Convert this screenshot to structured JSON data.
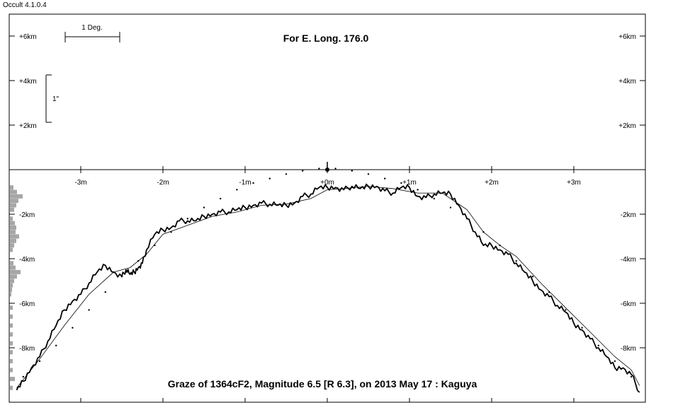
{
  "app": {
    "version": "Occult 4.1.0.4"
  },
  "chart_data": {
    "type": "line",
    "title": "For E. Long. 176.0",
    "subtitle": "Graze of  1364cF2,  Magnitude 6.5 [R 6.3],  on 2013 May 17  :  Kaguya",
    "scale_bars": {
      "degree_label": "1 Deg.",
      "arcsec_label": "1\""
    },
    "x_axis": {
      "unit": "min",
      "range": [
        -3.8,
        3.85
      ],
      "ticks": [
        -3,
        -2,
        -1,
        0,
        1,
        2,
        3
      ],
      "tick_labels": [
        "-3m",
        "-2m",
        "-1m",
        "+0m",
        "+1m",
        "+2m",
        "+3m"
      ]
    },
    "y_axis": {
      "unit": "km",
      "range": [
        -10.2,
        7.0
      ],
      "ticks": [
        6,
        4,
        2,
        -2,
        -4,
        -6,
        -8
      ],
      "tick_labels": [
        "+6km",
        "+4km",
        "+2km",
        "-2km",
        "-4km",
        "-6km",
        "-8km"
      ]
    },
    "series": [
      {
        "role": "limb_profile",
        "x": [
          -3.78,
          -3.7,
          -3.6,
          -3.5,
          -3.4,
          -3.3,
          -3.2,
          -3.1,
          -3.0,
          -2.9,
          -2.8,
          -2.7,
          -2.6,
          -2.5,
          -2.45,
          -2.4,
          -2.35,
          -2.3,
          -2.25,
          -2.2,
          -2.1,
          -2.0,
          -1.9,
          -1.8,
          -1.7,
          -1.6,
          -1.5,
          -1.4,
          -1.3,
          -1.2,
          -1.1,
          -1.0,
          -0.9,
          -0.8,
          -0.7,
          -0.6,
          -0.5,
          -0.4,
          -0.3,
          -0.2,
          -0.1,
          0.0,
          0.1,
          0.2,
          0.3,
          0.4,
          0.5,
          0.6,
          0.7,
          0.8,
          0.9,
          1.0,
          1.1,
          1.2,
          1.3,
          1.4,
          1.5,
          1.6,
          1.7,
          1.8,
          1.9,
          2.0,
          2.1,
          2.2,
          2.3,
          2.4,
          2.5,
          2.6,
          2.7,
          2.8,
          2.9,
          3.0,
          3.1,
          3.2,
          3.3,
          3.4,
          3.5,
          3.6,
          3.7,
          3.8
        ],
        "y": [
          -9.9,
          -9.5,
          -8.9,
          -8.4,
          -7.7,
          -7.0,
          -6.3,
          -5.9,
          -5.6,
          -5.1,
          -4.6,
          -4.3,
          -4.6,
          -4.8,
          -4.5,
          -4.7,
          -4.6,
          -4.4,
          -4.2,
          -3.6,
          -2.9,
          -2.7,
          -2.6,
          -2.3,
          -2.3,
          -2.3,
          -2.1,
          -2.0,
          -1.9,
          -1.9,
          -1.8,
          -1.7,
          -1.6,
          -1.5,
          -1.55,
          -1.6,
          -1.6,
          -1.5,
          -1.2,
          -1.1,
          -0.8,
          -0.8,
          -0.8,
          -0.9,
          -0.75,
          -0.85,
          -0.75,
          -0.75,
          -0.95,
          -1.05,
          -0.8,
          -0.8,
          -1.2,
          -1.25,
          -1.1,
          -1.05,
          -1.1,
          -1.6,
          -2.2,
          -2.8,
          -3.4,
          -3.4,
          -3.6,
          -3.8,
          -4.2,
          -4.6,
          -5.0,
          -5.4,
          -5.7,
          -6.1,
          -6.4,
          -6.9,
          -7.2,
          -7.6,
          -8.0,
          -8.4,
          -8.9,
          -8.9,
          -9.2,
          -10.0
        ]
      },
      {
        "role": "smoothed_limb",
        "x": [
          -3.78,
          -3.5,
          -3.2,
          -2.9,
          -2.6,
          -2.4,
          -2.2,
          -2.0,
          -1.7,
          -1.4,
          -1.1,
          -0.8,
          -0.5,
          -0.2,
          0.0,
          0.2,
          0.5,
          0.8,
          1.1,
          1.4,
          1.7,
          1.9,
          2.1,
          2.3,
          2.6,
          2.9,
          3.2,
          3.5,
          3.7,
          3.8
        ],
        "y": [
          -9.8,
          -8.5,
          -7.0,
          -5.6,
          -4.6,
          -4.4,
          -3.8,
          -2.9,
          -2.5,
          -2.1,
          -1.9,
          -1.6,
          -1.55,
          -1.3,
          -0.9,
          -0.85,
          -0.75,
          -0.85,
          -1.05,
          -1.05,
          -1.8,
          -2.8,
          -3.4,
          -3.9,
          -5.1,
          -6.2,
          -7.3,
          -8.4,
          -9.0,
          -9.7
        ]
      },
      {
        "role": "mean_limb_dots",
        "x": [
          -3.7,
          -3.5,
          -3.3,
          -3.1,
          -2.9,
          -2.7,
          -2.5,
          -2.3,
          -2.1,
          -1.9,
          -1.7,
          -1.5,
          -1.3,
          -1.1,
          -0.9,
          -0.7,
          -0.5,
          -0.3,
          -0.1,
          0.1,
          0.3,
          0.5,
          0.7,
          0.9,
          1.1,
          1.3,
          1.5,
          1.7,
          1.9,
          2.1,
          2.3,
          2.5,
          2.7,
          2.9,
          3.1,
          3.3,
          3.5,
          3.7
        ],
        "y": [
          -9.3,
          -8.6,
          -7.9,
          -7.1,
          -6.3,
          -5.5,
          -4.8,
          -4.1,
          -3.4,
          -2.8,
          -2.2,
          -1.7,
          -1.3,
          -0.9,
          -0.6,
          -0.4,
          -0.2,
          -0.05,
          0.05,
          0.05,
          -0.05,
          -0.2,
          -0.4,
          -0.6,
          -0.9,
          -1.3,
          -1.7,
          -2.2,
          -2.8,
          -3.4,
          -4.1,
          -4.8,
          -5.5,
          -6.3,
          -7.1,
          -7.9,
          -8.6,
          -9.3
        ]
      }
    ],
    "histogram": {
      "y": [
        -0.8,
        -1.0,
        -1.2,
        -1.4,
        -1.6,
        -1.8,
        -2.2,
        -2.4,
        -2.6,
        -2.8,
        -3.0,
        -3.2,
        -3.4,
        -3.6,
        -4.2,
        -4.4,
        -4.6,
        -4.8,
        -5.0,
        -5.2,
        -5.4,
        -5.6,
        -6.2,
        -6.6,
        -7.0,
        -7.4,
        -7.8,
        -8.2,
        -8.6,
        -9.0,
        -9.4,
        -9.8
      ],
      "values": [
        5,
        10,
        18,
        12,
        9,
        6,
        4,
        7,
        9,
        8,
        13,
        9,
        6,
        4,
        5,
        8,
        15,
        10,
        6,
        4,
        3,
        2,
        4,
        4,
        4,
        4,
        4,
        4,
        4,
        4,
        7,
        4
      ]
    },
    "grid": false,
    "legend": "none"
  }
}
